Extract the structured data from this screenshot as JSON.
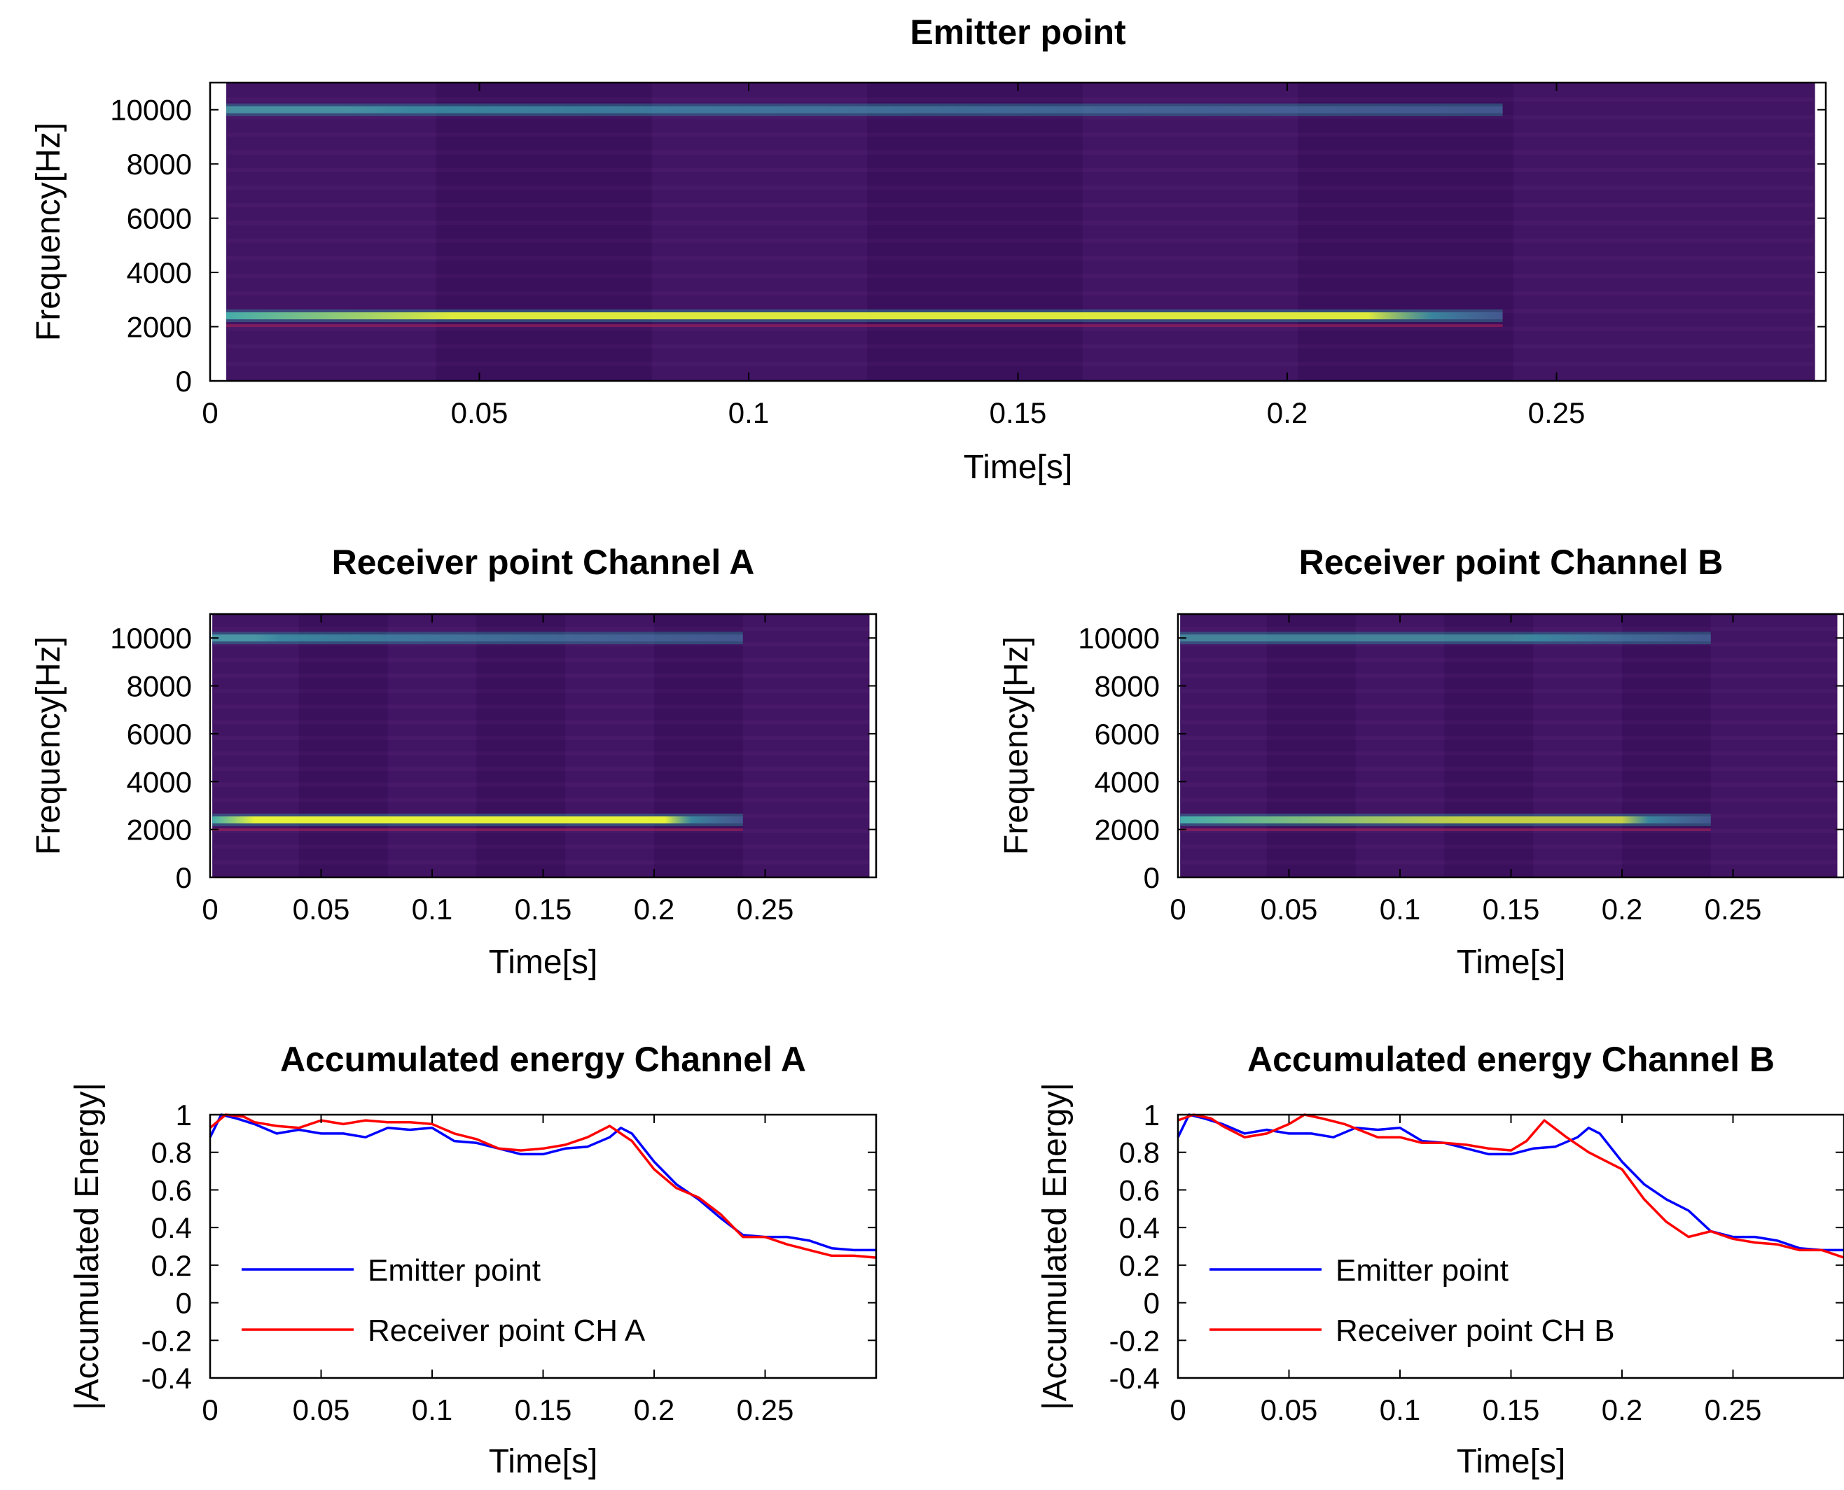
{
  "colors": {
    "spec_background": "#3e1160",
    "spec_stripe_alt": "#4a1a6b",
    "emitter_line": "#0000ff",
    "receiver_line": "#ff0000",
    "low_band": "#e6f23a",
    "high_band": "#56c7c0"
  },
  "chart_data": [
    {
      "id": "emitter-spectrogram",
      "type": "heatmap",
      "title": "Emitter point",
      "xlabel": "Time[s]",
      "ylabel": "Frequency[Hz]",
      "xlim": [
        0,
        0.3
      ],
      "ylim": [
        0,
        11000
      ],
      "xticks": [
        0,
        0.05,
        0.1,
        0.15,
        0.2,
        0.25
      ],
      "xtick_labels": [
        "0",
        "0.05",
        "0.1",
        "0.15",
        "0.2",
        "0.25"
      ],
      "yticks": [
        0,
        2000,
        4000,
        6000,
        8000,
        10000
      ],
      "ytick_labels": [
        "0",
        "2000",
        "4000",
        "6000",
        "8000",
        "10000"
      ],
      "data_extent": [
        0.003,
        0.298
      ],
      "segments": [
        0.003,
        0.042,
        0.082,
        0.122,
        0.162,
        0.202,
        0.242,
        0.298
      ],
      "bands": [
        {
          "name": "tone-2400Hz",
          "freq": 2400,
          "start": 0.003,
          "end": 0.24,
          "peak_start": 0.045,
          "peak_end": 0.215,
          "intensity": 0.95
        },
        {
          "name": "tone-10000Hz",
          "freq": 10000,
          "start": 0.003,
          "end": 0.24,
          "peak_start": 0.003,
          "peak_end": 0.025,
          "intensity": 0.55
        }
      ]
    },
    {
      "id": "receiver-a-spectrogram",
      "type": "heatmap",
      "title": "Receiver point Channel A",
      "xlabel": "Time[s]",
      "ylabel": "Frequency[Hz]",
      "xlim": [
        0,
        0.3
      ],
      "ylim": [
        0,
        11000
      ],
      "xticks": [
        0,
        0.05,
        0.1,
        0.15,
        0.2,
        0.25
      ],
      "xtick_labels": [
        "0",
        "0.05",
        "0.1",
        "0.15",
        "0.2",
        "0.25"
      ],
      "yticks": [
        0,
        2000,
        4000,
        6000,
        8000,
        10000
      ],
      "ytick_labels": [
        "0",
        "2000",
        "4000",
        "6000",
        "8000",
        "10000"
      ],
      "data_extent": [
        0.001,
        0.297
      ],
      "segments": [
        0.001,
        0.04,
        0.08,
        0.12,
        0.16,
        0.2,
        0.24,
        0.297
      ],
      "bands": [
        {
          "name": "tone-2400Hz",
          "freq": 2400,
          "start": 0.001,
          "end": 0.24,
          "peak_start": 0.02,
          "peak_end": 0.205,
          "intensity": 1.0
        },
        {
          "name": "tone-10000Hz",
          "freq": 10000,
          "start": 0.001,
          "end": 0.24,
          "peak_start": 0.001,
          "peak_end": 0.02,
          "intensity": 0.6
        }
      ]
    },
    {
      "id": "receiver-b-spectrogram",
      "type": "heatmap",
      "title": "Receiver point Channel B",
      "xlabel": "Time[s]",
      "ylabel": "Frequency[Hz]",
      "xlim": [
        0,
        0.3
      ],
      "ylim": [
        0,
        11000
      ],
      "xticks": [
        0,
        0.05,
        0.1,
        0.15,
        0.2,
        0.25
      ],
      "xtick_labels": [
        "0",
        "0.05",
        "0.1",
        "0.15",
        "0.2",
        "0.25"
      ],
      "yticks": [
        0,
        2000,
        4000,
        6000,
        8000,
        10000
      ],
      "ytick_labels": [
        "0",
        "2000",
        "4000",
        "6000",
        "8000",
        "10000"
      ],
      "data_extent": [
        0.001,
        0.297
      ],
      "segments": [
        0.001,
        0.04,
        0.08,
        0.12,
        0.16,
        0.2,
        0.24,
        0.297
      ],
      "bands": [
        {
          "name": "tone-2400Hz",
          "freq": 2400,
          "start": 0.001,
          "end": 0.24,
          "peak_start": 0.13,
          "peak_end": 0.2,
          "intensity": 0.8
        },
        {
          "name": "tone-10000Hz",
          "freq": 10000,
          "start": 0.001,
          "end": 0.24,
          "peak_start": 0.001,
          "peak_end": 0.15,
          "intensity": 0.45
        }
      ]
    },
    {
      "id": "energy-a",
      "type": "line",
      "title": "Accumulated energy Channel A",
      "xlabel": "Time[s]",
      "ylabel": "|Accumulated Energy|",
      "xlim": [
        0,
        0.3
      ],
      "ylim": [
        -0.4,
        1
      ],
      "xticks": [
        0,
        0.05,
        0.1,
        0.15,
        0.2,
        0.25
      ],
      "xtick_labels": [
        "0",
        "0.05",
        "0.1",
        "0.15",
        "0.2",
        "0.25"
      ],
      "yticks": [
        -0.4,
        -0.2,
        0,
        0.2,
        0.4,
        0.6,
        0.8,
        1
      ],
      "ytick_labels": [
        "-0.4",
        "-0.2",
        "0",
        "0.2",
        "0.4",
        "0.6",
        "0.8",
        "1"
      ],
      "legend": "bottom-left",
      "series": [
        {
          "name": "Emitter point",
          "color": "#0000ff",
          "x": [
            0,
            0.005,
            0.012,
            0.02,
            0.03,
            0.04,
            0.05,
            0.06,
            0.07,
            0.08,
            0.09,
            0.1,
            0.11,
            0.12,
            0.13,
            0.14,
            0.15,
            0.16,
            0.17,
            0.18,
            0.185,
            0.19,
            0.2,
            0.21,
            0.22,
            0.23,
            0.24,
            0.25,
            0.26,
            0.27,
            0.28,
            0.29,
            0.3
          ],
          "y": [
            0.88,
            1.0,
            0.98,
            0.95,
            0.9,
            0.92,
            0.9,
            0.9,
            0.88,
            0.93,
            0.92,
            0.93,
            0.86,
            0.85,
            0.82,
            0.79,
            0.79,
            0.82,
            0.83,
            0.88,
            0.93,
            0.9,
            0.75,
            0.63,
            0.55,
            0.45,
            0.36,
            0.35,
            0.35,
            0.33,
            0.29,
            0.28,
            0.28
          ]
        },
        {
          "name": "Receiver point CH A",
          "color": "#ff0000",
          "x": [
            0,
            0.007,
            0.015,
            0.02,
            0.03,
            0.04,
            0.05,
            0.06,
            0.07,
            0.08,
            0.09,
            0.1,
            0.11,
            0.12,
            0.13,
            0.14,
            0.15,
            0.16,
            0.17,
            0.18,
            0.19,
            0.2,
            0.21,
            0.22,
            0.23,
            0.24,
            0.25,
            0.26,
            0.27,
            0.28,
            0.29,
            0.3
          ],
          "y": [
            0.93,
            1.0,
            0.99,
            0.96,
            0.94,
            0.93,
            0.97,
            0.95,
            0.97,
            0.96,
            0.96,
            0.95,
            0.9,
            0.87,
            0.82,
            0.81,
            0.82,
            0.84,
            0.88,
            0.94,
            0.86,
            0.71,
            0.61,
            0.56,
            0.47,
            0.35,
            0.35,
            0.31,
            0.28,
            0.25,
            0.25,
            0.24
          ]
        }
      ]
    },
    {
      "id": "energy-b",
      "type": "line",
      "title": "Accumulated energy Channel B",
      "xlabel": "Time[s]",
      "ylabel": "|Accumulated Energy|",
      "xlim": [
        0,
        0.3
      ],
      "ylim": [
        -0.4,
        1
      ],
      "xticks": [
        0,
        0.05,
        0.1,
        0.15,
        0.2,
        0.25
      ],
      "xtick_labels": [
        "0",
        "0.05",
        "0.1",
        "0.15",
        "0.2",
        "0.25"
      ],
      "yticks": [
        -0.4,
        -0.2,
        0,
        0.2,
        0.4,
        0.6,
        0.8,
        1
      ],
      "ytick_labels": [
        "-0.4",
        "-0.2",
        "0",
        "0.2",
        "0.4",
        "0.6",
        "0.8",
        "1"
      ],
      "legend": "bottom-left",
      "series": [
        {
          "name": "Emitter point",
          "color": "#0000ff",
          "x": [
            0,
            0.005,
            0.012,
            0.02,
            0.03,
            0.04,
            0.05,
            0.06,
            0.07,
            0.08,
            0.09,
            0.1,
            0.11,
            0.12,
            0.13,
            0.14,
            0.15,
            0.16,
            0.17,
            0.18,
            0.185,
            0.19,
            0.2,
            0.21,
            0.22,
            0.23,
            0.24,
            0.25,
            0.26,
            0.27,
            0.28,
            0.29,
            0.3
          ],
          "y": [
            0.88,
            1.0,
            0.98,
            0.95,
            0.9,
            0.92,
            0.9,
            0.9,
            0.88,
            0.93,
            0.92,
            0.93,
            0.86,
            0.85,
            0.82,
            0.79,
            0.79,
            0.82,
            0.83,
            0.88,
            0.93,
            0.9,
            0.75,
            0.63,
            0.55,
            0.49,
            0.38,
            0.35,
            0.35,
            0.33,
            0.29,
            0.28,
            0.28
          ]
        },
        {
          "name": "Receiver point CH B",
          "color": "#ff0000",
          "x": [
            0,
            0.007,
            0.015,
            0.02,
            0.03,
            0.04,
            0.05,
            0.057,
            0.065,
            0.075,
            0.09,
            0.1,
            0.11,
            0.12,
            0.13,
            0.14,
            0.15,
            0.157,
            0.165,
            0.175,
            0.185,
            0.19,
            0.2,
            0.21,
            0.22,
            0.23,
            0.24,
            0.25,
            0.26,
            0.27,
            0.28,
            0.29,
            0.3
          ],
          "y": [
            0.97,
            1.0,
            0.98,
            0.94,
            0.88,
            0.9,
            0.95,
            1.0,
            0.98,
            0.95,
            0.88,
            0.88,
            0.85,
            0.85,
            0.84,
            0.82,
            0.81,
            0.86,
            0.97,
            0.88,
            0.8,
            0.77,
            0.71,
            0.55,
            0.43,
            0.35,
            0.38,
            0.34,
            0.32,
            0.31,
            0.28,
            0.28,
            0.24
          ]
        }
      ]
    }
  ]
}
